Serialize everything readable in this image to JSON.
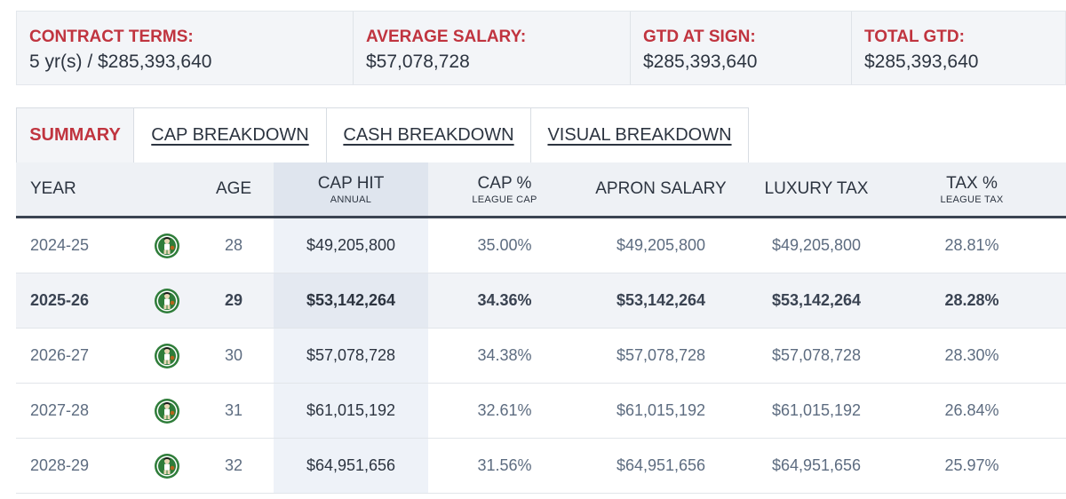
{
  "summary": [
    {
      "label": "CONTRACT TERMS:",
      "value": "5 yr(s) / $285,393,640"
    },
    {
      "label": "AVERAGE SALARY:",
      "value": "$57,078,728"
    },
    {
      "label": "GTD AT SIGN:",
      "value": "$285,393,640"
    },
    {
      "label": "TOTAL GTD:",
      "value": "$285,393,640"
    }
  ],
  "tabs": [
    {
      "label": "SUMMARY"
    },
    {
      "label": "CAP BREAKDOWN"
    },
    {
      "label": "CASH BREAKDOWN"
    },
    {
      "label": "VISUAL BREAKDOWN"
    }
  ],
  "table": {
    "headers": {
      "year": "YEAR",
      "age": "AGE",
      "cap_hit": "CAP HIT",
      "cap_hit_sub": "ANNUAL",
      "cap_pct": "CAP %",
      "cap_pct_sub": "LEAGUE CAP",
      "apron": "APRON SALARY",
      "luxury": "LUXURY TAX",
      "tax_pct": "TAX %",
      "tax_pct_sub": "LEAGUE TAX"
    },
    "rows": [
      {
        "year": "2024-25",
        "age": "28",
        "cap_hit": "$49,205,800",
        "cap_pct": "35.00%",
        "apron": "$49,205,800",
        "luxury": "$49,205,800",
        "tax_pct": "28.81%"
      },
      {
        "year": "2025-26",
        "age": "29",
        "cap_hit": "$53,142,264",
        "cap_pct": "34.36%",
        "apron": "$53,142,264",
        "luxury": "$53,142,264",
        "tax_pct": "28.28%"
      },
      {
        "year": "2026-27",
        "age": "30",
        "cap_hit": "$57,078,728",
        "cap_pct": "34.38%",
        "apron": "$57,078,728",
        "luxury": "$57,078,728",
        "tax_pct": "28.30%"
      },
      {
        "year": "2027-28",
        "age": "31",
        "cap_hit": "$61,015,192",
        "cap_pct": "32.61%",
        "apron": "$61,015,192",
        "luxury": "$61,015,192",
        "tax_pct": "26.84%"
      },
      {
        "year": "2028-29",
        "age": "32",
        "cap_hit": "$64,951,656",
        "cap_pct": "31.56%",
        "apron": "$64,951,656",
        "luxury": "$64,951,656",
        "tax_pct": "25.97%"
      }
    ],
    "team_logo_icon": "team-logo-icon"
  },
  "colors": {
    "accent_red": "#c0343f",
    "text_dark": "#2c3440",
    "text_muted": "#5d6c80",
    "logo_green": "#2f7d3a"
  }
}
